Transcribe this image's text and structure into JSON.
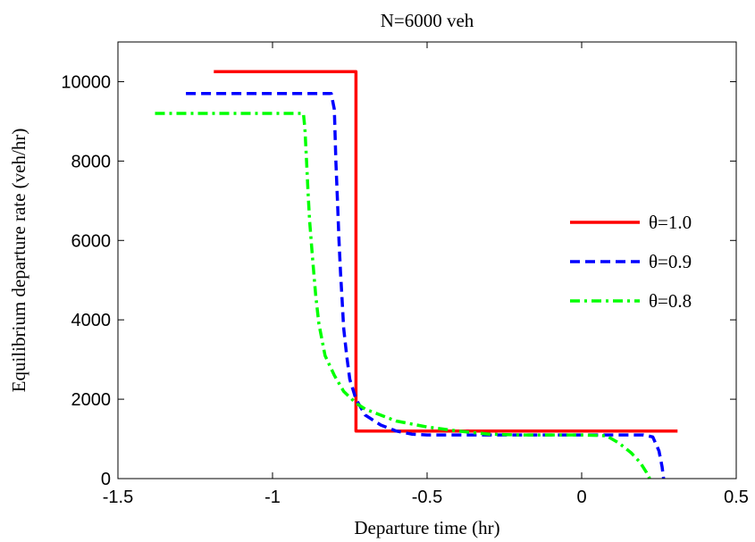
{
  "chart_data": {
    "type": "line",
    "title": "N=6000 veh",
    "xlabel": "Departure time (hr)",
    "ylabel": "Equilibrium departure rate (veh/hr)",
    "xlim": [
      -1.5,
      0.5
    ],
    "ylim": [
      0,
      11000
    ],
    "xticks": [
      -1.5,
      -1,
      -0.5,
      0,
      0.5
    ],
    "xtick_labels": [
      "-1.5",
      "-1",
      "-0.5",
      "0",
      "0.5"
    ],
    "yticks": [
      0,
      2000,
      4000,
      6000,
      8000,
      10000
    ],
    "ytick_labels": [
      "0",
      "2000",
      "4000",
      "6000",
      "8000",
      "10000"
    ],
    "grid": false,
    "legend_position": "right",
    "series": [
      {
        "name": "θ=1.0",
        "color": "#ff0000",
        "dash": "solid",
        "x": [
          -1.19,
          -0.73,
          -0.73,
          -0.73,
          0.31
        ],
        "y": [
          10250,
          10250,
          10250,
          1200,
          1200
        ]
      },
      {
        "name": "θ=0.9",
        "color": "#0000ff",
        "dash": "dashed",
        "x": [
          -1.28,
          -0.81,
          -0.8,
          -0.795,
          -0.79,
          -0.785,
          -0.78,
          -0.775,
          -0.77,
          -0.76,
          -0.75,
          -0.73,
          -0.7,
          -0.65,
          -0.6,
          -0.55,
          -0.5,
          0.0,
          0.1,
          0.2,
          0.23,
          0.25,
          0.26,
          0.265
        ],
        "y": [
          9700,
          9700,
          9300,
          8000,
          7000,
          6000,
          5200,
          4500,
          3800,
          3100,
          2500,
          2000,
          1600,
          1350,
          1200,
          1120,
          1100,
          1100,
          1100,
          1100,
          1050,
          700,
          300,
          0
        ]
      },
      {
        "name": "θ=0.8",
        "color": "#00ff00",
        "dash": "dashdot",
        "x": [
          -1.38,
          -0.9,
          -0.895,
          -0.89,
          -0.885,
          -0.88,
          -0.87,
          -0.86,
          -0.85,
          -0.83,
          -0.8,
          -0.77,
          -0.73,
          -0.7,
          -0.65,
          -0.6,
          -0.5,
          -0.4,
          -0.3,
          -0.2,
          0.0,
          0.08,
          0.12,
          0.16,
          0.19,
          0.21,
          0.22
        ],
        "y": [
          9200,
          9200,
          8800,
          8000,
          7200,
          6500,
          5500,
          4600,
          3900,
          3100,
          2600,
          2200,
          1900,
          1750,
          1600,
          1450,
          1300,
          1200,
          1120,
          1100,
          1100,
          1080,
          900,
          650,
          400,
          150,
          0
        ]
      }
    ]
  }
}
